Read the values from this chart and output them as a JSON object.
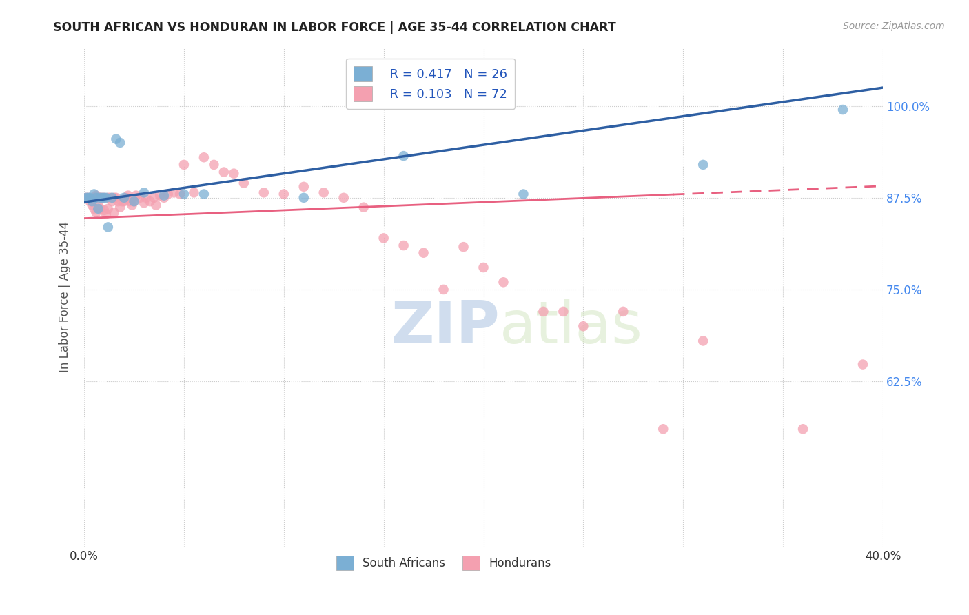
{
  "title": "SOUTH AFRICAN VS HONDURAN IN LABOR FORCE | AGE 35-44 CORRELATION CHART",
  "source": "Source: ZipAtlas.com",
  "ylabel": "In Labor Force | Age 35-44",
  "xlim": [
    0.0,
    0.4
  ],
  "ylim": [
    0.4,
    1.08
  ],
  "yticks": [
    0.625,
    0.75,
    0.875,
    1.0
  ],
  "ytick_labels": [
    "62.5%",
    "75.0%",
    "87.5%",
    "100.0%"
  ],
  "xticks": [
    0.0,
    0.05,
    0.1,
    0.15,
    0.2,
    0.25,
    0.3,
    0.35,
    0.4
  ],
  "xtick_labels": [
    "0.0%",
    "",
    "",
    "",
    "",
    "",
    "",
    "",
    "40.0%"
  ],
  "south_african_color": "#7BAFD4",
  "honduran_color": "#F4A0B0",
  "trendline_sa_color": "#2E5FA3",
  "trendline_hon_color": "#E86080",
  "legend_r_sa": "R = 0.417",
  "legend_n_sa": "N = 26",
  "legend_r_hon": "R = 0.103",
  "legend_n_hon": "N = 72",
  "sa_x": [
    0.001,
    0.002,
    0.003,
    0.004,
    0.005,
    0.006,
    0.007,
    0.008,
    0.009,
    0.01,
    0.011,
    0.012,
    0.014,
    0.016,
    0.018,
    0.02,
    0.025,
    0.03,
    0.04,
    0.05,
    0.06,
    0.11,
    0.16,
    0.22,
    0.31,
    0.38
  ],
  "sa_y": [
    0.875,
    0.875,
    0.875,
    0.87,
    0.88,
    0.875,
    0.86,
    0.875,
    0.875,
    0.875,
    0.875,
    0.835,
    0.875,
    0.955,
    0.95,
    0.875,
    0.87,
    0.882,
    0.878,
    0.88,
    0.88,
    0.875,
    0.932,
    0.88,
    0.92,
    0.995
  ],
  "hon_x": [
    0.001,
    0.002,
    0.003,
    0.004,
    0.005,
    0.005,
    0.006,
    0.006,
    0.007,
    0.007,
    0.008,
    0.008,
    0.009,
    0.01,
    0.01,
    0.011,
    0.012,
    0.012,
    0.013,
    0.014,
    0.015,
    0.015,
    0.016,
    0.017,
    0.018,
    0.019,
    0.02,
    0.021,
    0.022,
    0.023,
    0.024,
    0.025,
    0.026,
    0.028,
    0.03,
    0.031,
    0.033,
    0.035,
    0.036,
    0.038,
    0.04,
    0.042,
    0.045,
    0.048,
    0.05,
    0.055,
    0.06,
    0.065,
    0.07,
    0.075,
    0.08,
    0.09,
    0.1,
    0.11,
    0.12,
    0.13,
    0.14,
    0.15,
    0.16,
    0.17,
    0.18,
    0.19,
    0.2,
    0.21,
    0.23,
    0.24,
    0.25,
    0.27,
    0.29,
    0.31,
    0.36,
    0.39
  ],
  "hon_y": [
    0.875,
    0.875,
    0.87,
    0.865,
    0.86,
    0.875,
    0.855,
    0.878,
    0.865,
    0.875,
    0.86,
    0.875,
    0.875,
    0.858,
    0.875,
    0.853,
    0.875,
    0.86,
    0.875,
    0.87,
    0.875,
    0.855,
    0.875,
    0.87,
    0.862,
    0.87,
    0.87,
    0.875,
    0.878,
    0.87,
    0.865,
    0.87,
    0.878,
    0.875,
    0.868,
    0.875,
    0.87,
    0.875,
    0.865,
    0.878,
    0.875,
    0.88,
    0.882,
    0.88,
    0.92,
    0.882,
    0.93,
    0.92,
    0.91,
    0.908,
    0.895,
    0.882,
    0.88,
    0.89,
    0.882,
    0.875,
    0.862,
    0.82,
    0.81,
    0.8,
    0.75,
    0.808,
    0.78,
    0.76,
    0.72,
    0.72,
    0.7,
    0.72,
    0.56,
    0.68,
    0.56,
    0.648
  ],
  "watermark_zip": "ZIP",
  "watermark_atlas": "atlas",
  "background_color": "#ffffff",
  "grid_color": "#CCCCCC",
  "trendline_sa_intercept": 0.869,
  "trendline_sa_slope": 0.39,
  "trendline_hon_intercept": 0.847,
  "trendline_hon_slope": 0.11
}
